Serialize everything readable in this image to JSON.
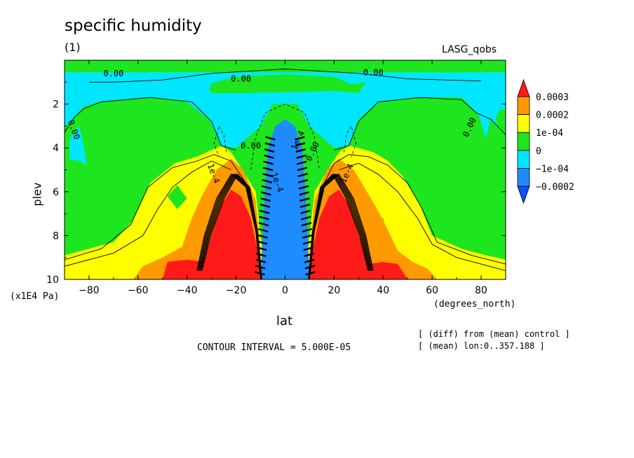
{
  "chart_data": {
    "type": "heatmap",
    "title": "specific humidity",
    "subtitle": "(1)",
    "dataset": "LASG_qobs",
    "xlabel": "lat",
    "xunits": "(degrees_north)",
    "ylabel": "plev",
    "yunits": "(x1E4 Pa)",
    "xlim": [
      -90,
      90
    ],
    "ylim": [
      10,
      0
    ],
    "x_ticks": [
      -80,
      -60,
      -40,
      -20,
      0,
      20,
      40,
      60,
      80
    ],
    "y_ticks": [
      2,
      4,
      6,
      8,
      10
    ],
    "contour_interval_text": "CONTOUR INTERVAL = 5.000E-05",
    "notes": [
      "[ (diff) from (mean) control ]",
      "[ (mean) lon:0..357.188 ]"
    ],
    "legend": {
      "placement": "right",
      "levels": [
        "0.0003",
        "0.0002",
        "1e-04",
        "0",
        "-1e-04",
        "-0.0002"
      ],
      "colors": [
        "#ff1a1a",
        "#ff9900",
        "#ffff00",
        "#1ee61e",
        "#00e6ff",
        "#1e8cff",
        "#0a50ff"
      ]
    },
    "contour_labels": [
      "0.00",
      "0.00",
      "0.00",
      "0.00",
      "0.00",
      "0.00",
      "0.00",
      "1e-4",
      "1e-4",
      "1e-4",
      "1e-4"
    ],
    "regions": [
      {
        "name": "upper-negative-band",
        "value_range": [
          -0.0001,
          0
        ],
        "lat": [
          -90,
          90
        ],
        "plev": [
          0.4,
          1.6
        ]
      },
      {
        "name": "tropical-negative-core",
        "value_range": [
          -0.0002,
          -0.0001
        ],
        "lat": [
          -7,
          7
        ],
        "plev": [
          2.8,
          10
        ]
      },
      {
        "name": "south-positive-max",
        "value_range": [
          0.0003,
          0.00035
        ],
        "lat": [
          -30,
          -8
        ],
        "plev": [
          6,
          10
        ]
      },
      {
        "name": "north-positive-max",
        "value_range": [
          0.0003,
          0.00035
        ],
        "lat": [
          8,
          30
        ],
        "plev": [
          6,
          10
        ]
      }
    ]
  }
}
